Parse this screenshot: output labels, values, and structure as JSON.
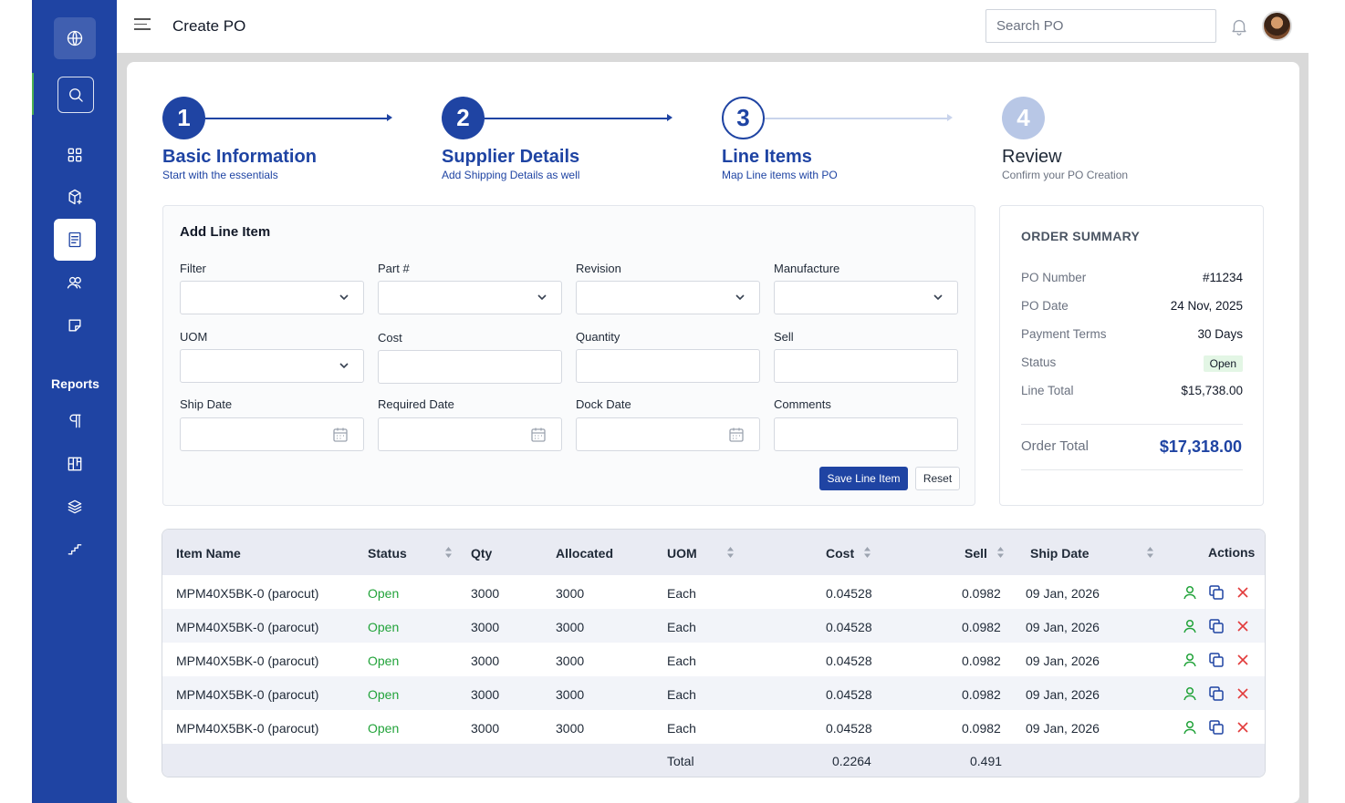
{
  "header": {
    "title": "Create PO",
    "search_placeholder": "Search PO"
  },
  "sidebar": {
    "reports_label": "Reports",
    "icons": [
      "globe-icon",
      "search-icon",
      "grid-icon",
      "package-icon",
      "receipt-icon",
      "users-icon",
      "sticky-note-icon",
      "paragraph-icon",
      "board-icon",
      "layers-icon",
      "stairs-icon"
    ]
  },
  "stepper": {
    "steps": [
      {
        "number": "1",
        "title": "Basic Information",
        "subtitle": "Start with the essentials",
        "state": "done"
      },
      {
        "number": "2",
        "title": "Supplier Details",
        "subtitle": "Add Shipping Details as well",
        "state": "done"
      },
      {
        "number": "3",
        "title": "Line Items",
        "subtitle": "Map Line items with PO",
        "state": "current"
      },
      {
        "number": "4",
        "title": "Review",
        "subtitle": "Confirm your PO Creation",
        "state": "todo"
      }
    ]
  },
  "form": {
    "title": "Add Line Item",
    "labels": {
      "filter": "Filter",
      "part": "Part #",
      "revision": "Revision",
      "manufacture": "Manufacture",
      "uom": "UOM",
      "cost": "Cost",
      "quantity": "Quantity",
      "sell": "Sell",
      "ship_date": "Ship Date",
      "required_date": "Required Date",
      "dock_date": "Dock Date",
      "comments": "Comments"
    },
    "save_label": "Save Line Item",
    "reset_label": "Reset"
  },
  "summary": {
    "title": "ORDER SUMMARY",
    "rows": [
      {
        "key": "PO Number",
        "value": "#11234"
      },
      {
        "key": "PO Date",
        "value": "24 Nov, 2025"
      },
      {
        "key": "Payment Terms",
        "value": "30 Days"
      },
      {
        "key": "Status",
        "value": "Open"
      },
      {
        "key": "Line Total",
        "value": "$15,738.00"
      }
    ],
    "order_total_label": "Order Total",
    "order_total_value": "$17,318.00"
  },
  "table": {
    "columns": [
      "Item Name",
      "Status",
      "Qty",
      "Allocated",
      "UOM",
      "Cost",
      "Sell",
      "Ship Date",
      "Actions"
    ],
    "rows": [
      {
        "item": "MPM40X5BK-0 (parocut)",
        "status": "Open",
        "qty": "3000",
        "allocated": "3000",
        "uom": "Each",
        "cost": "0.04528",
        "sell": "0.0982",
        "ship_date": "09 Jan, 2026"
      },
      {
        "item": "MPM40X5BK-0 (parocut)",
        "status": "Open",
        "qty": "3000",
        "allocated": "3000",
        "uom": "Each",
        "cost": "0.04528",
        "sell": "0.0982",
        "ship_date": "09 Jan, 2026"
      },
      {
        "item": "MPM40X5BK-0 (parocut)",
        "status": "Open",
        "qty": "3000",
        "allocated": "3000",
        "uom": "Each",
        "cost": "0.04528",
        "sell": "0.0982",
        "ship_date": "09 Jan, 2026"
      },
      {
        "item": "MPM40X5BK-0 (parocut)",
        "status": "Open",
        "qty": "3000",
        "allocated": "3000",
        "uom": "Each",
        "cost": "0.04528",
        "sell": "0.0982",
        "ship_date": "09 Jan, 2026"
      },
      {
        "item": "MPM40X5BK-0 (parocut)",
        "status": "Open",
        "qty": "3000",
        "allocated": "3000",
        "uom": "Each",
        "cost": "0.04528",
        "sell": "0.0982",
        "ship_date": "09 Jan, 2026"
      }
    ],
    "footer": {
      "label": "Total",
      "cost_total": "0.2264",
      "sell_total": "0.491"
    }
  },
  "colors": {
    "brand": "#1f44a3",
    "status_open": "#22a33a",
    "delete": "#e23b3b"
  }
}
